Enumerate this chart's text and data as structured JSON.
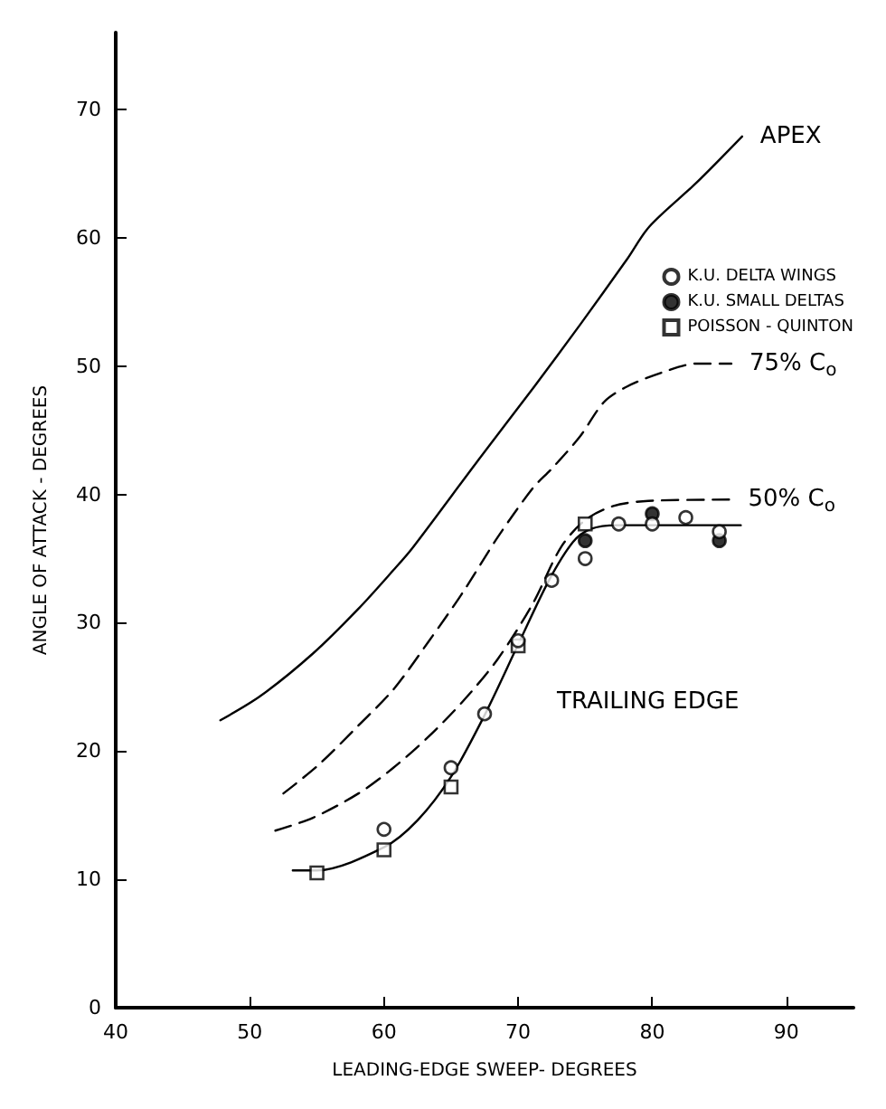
{
  "chart_data": {
    "type": "line",
    "xlabel": "LEADING-EDGE SWEEP- DEGREES",
    "ylabel": "ANGLE OF ATTACK - DEGREES",
    "xlim": [
      40,
      95
    ],
    "ylim": [
      0,
      76
    ],
    "xticks": [
      40,
      50,
      60,
      70,
      80,
      90
    ],
    "yticks": [
      0,
      10,
      20,
      30,
      40,
      50,
      60,
      70
    ],
    "grid": false,
    "legend": "top right",
    "annotations": [
      "TRAILING EDGE"
    ],
    "series": [
      {
        "name": "APEX",
        "color": "#000000",
        "line_style": "solid",
        "marker": "none",
        "x": [
          47.8,
          50.8,
          54.7,
          58.1,
          60.7,
          62.1,
          66.9,
          71.2,
          74.6,
          78.1,
          79.8,
          83.3,
          86.7
        ],
        "values": [
          22.4,
          24.3,
          27.6,
          31.1,
          34.1,
          35.8,
          42.5,
          48.4,
          53.2,
          58.3,
          60.9,
          64.3,
          67.9
        ]
      },
      {
        "name": "75% C$_{o}$",
        "color": "#000000",
        "line_style": "dashed",
        "marker": "none",
        "x": [
          52.5,
          55.1,
          58.1,
          60.7,
          63.3,
          65.9,
          68.5,
          71.1,
          72.5,
          74.6,
          76.4,
          78.1,
          80.7,
          83.3,
          85.9
        ],
        "values": [
          16.7,
          18.9,
          22,
          24.8,
          28.5,
          32.4,
          36.7,
          40.5,
          42,
          44.5,
          47.2,
          48.4,
          49.5,
          50.2,
          50.2
        ]
      },
      {
        "name": "50% C$_{o}$",
        "color": "#000000",
        "line_style": "dashed",
        "marker": "none",
        "x": [
          51.9,
          54.7,
          58.1,
          60.7,
          63.3,
          65.9,
          68.5,
          71.1,
          73.2,
          75,
          77.1,
          79.7,
          85.8
        ],
        "values": [
          13.8,
          14.8,
          16.7,
          18.7,
          21.1,
          23.9,
          27.2,
          31.5,
          35.9,
          38,
          39.1,
          39.5,
          39.6
        ]
      },
      {
        "color": "#000000",
        "line_style": "solid",
        "marker": "none",
        "x": [
          53.2,
          55,
          60,
          62.5,
          65,
          67.5,
          70,
          72.3,
          74.1,
          75.4,
          77.4,
          80,
          86.6
        ],
        "values": [
          10.7,
          10.7,
          12.5,
          14.6,
          18,
          22.8,
          28.3,
          33.3,
          36.3,
          37.3,
          37.6,
          37.6,
          37.6
        ]
      },
      {
        "name": "K.U. DELTA WINGS",
        "type": "scatter",
        "color": "#ffffff",
        "marker": "circle",
        "x": [
          60,
          65,
          67.5,
          70,
          72.5,
          75,
          77.5,
          80,
          82.5,
          85
        ],
        "values": [
          13.9,
          18.7,
          22.9,
          28.6,
          33.3,
          35,
          37.7,
          37.7,
          38.2,
          37.1
        ]
      },
      {
        "name": "K.U. SMALL DELTAS",
        "type": "scatter",
        "color": "#000000",
        "marker": "circle",
        "x": [
          75,
          80,
          85
        ],
        "values": [
          36.4,
          38.5,
          36.4
        ]
      },
      {
        "name": "POISSON - QUINTON",
        "type": "scatter",
        "color": "#ffffff",
        "marker": "square",
        "x": [
          55,
          60,
          65,
          70,
          75
        ],
        "values": [
          10.5,
          12.3,
          17.2,
          28.2,
          37.7
        ]
      }
    ]
  }
}
